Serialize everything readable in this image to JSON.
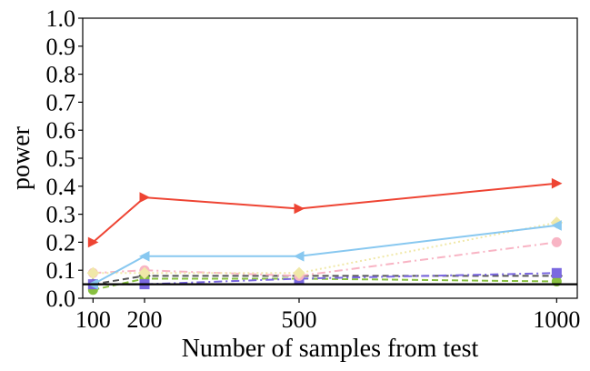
{
  "chart_data": {
    "type": "line",
    "title": "",
    "xlabel": "Number of samples from test",
    "ylabel": "power",
    "x": [
      100,
      200,
      500,
      1000
    ],
    "xlim": [
      80,
      1040
    ],
    "ylim": [
      0,
      1
    ],
    "xticks": [
      "100",
      "200",
      "500",
      "1000"
    ],
    "yticks": [
      "0.0",
      "0.1",
      "0.2",
      "0.3",
      "0.4",
      "0.5",
      "0.6",
      "0.7",
      "0.8",
      "0.9",
      "1.0"
    ],
    "grid": false,
    "reference_line": {
      "y": 0.05,
      "color": "#000000"
    },
    "series": [
      {
        "values": [
          0.2,
          0.36,
          0.32,
          0.41
        ],
        "color": "#ee4433",
        "dash": "solid",
        "marker": "tri-right"
      },
      {
        "values": [
          0.05,
          0.15,
          0.15,
          0.26
        ],
        "color": "#88c8f0",
        "dash": "solid",
        "marker": "tri-left"
      },
      {
        "values": [
          0.09,
          0.09,
          0.09,
          0.27
        ],
        "color": "#f0e8a8",
        "dash": "dotted",
        "marker": "diamond"
      },
      {
        "values": [
          0.09,
          0.1,
          0.08,
          0.2
        ],
        "color": "#f8b4c4",
        "dash": "dashdot",
        "marker": "circle"
      },
      {
        "values": [
          0.05,
          0.05,
          0.07,
          0.09
        ],
        "color": "#7a68e0",
        "dash": "dashdot",
        "marker": "square"
      },
      {
        "values": [
          0.03,
          0.07,
          0.07,
          0.06
        ],
        "color": "#88c040",
        "dash": "dashed",
        "marker": "circle"
      },
      {
        "values": [
          0.05,
          0.08,
          0.08,
          0.08
        ],
        "color": "#555555",
        "dash": "dashed",
        "marker": "diamond"
      }
    ]
  }
}
